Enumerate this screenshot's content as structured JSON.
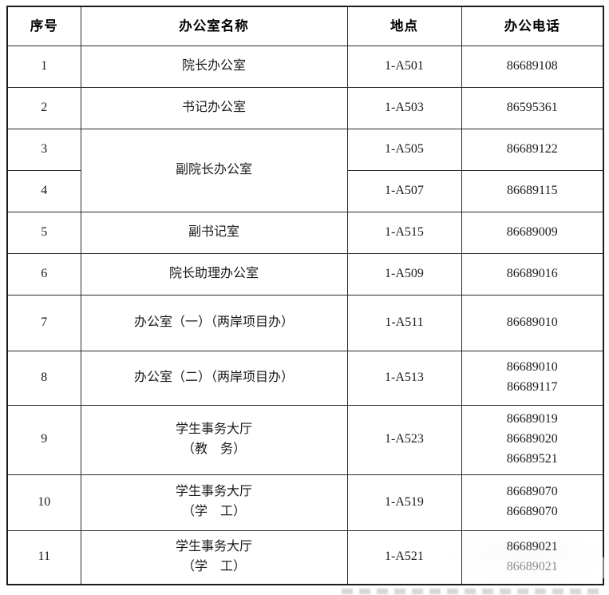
{
  "table": {
    "headers": [
      "序号",
      "办公室名称",
      "地点",
      "办公电话"
    ],
    "rows": [
      {
        "no": "1",
        "name": "院长办公室",
        "location": "1-A501",
        "phone": "86689108"
      },
      {
        "no": "2",
        "name": "书记办公室",
        "location": "1-A503",
        "phone": "86595361"
      },
      {
        "no": "3",
        "name": "副院长办公室",
        "location": "1-A505",
        "phone": "86689122"
      },
      {
        "no": "4",
        "location": "1-A507",
        "phone": "86689115"
      },
      {
        "no": "5",
        "name": "副书记室",
        "location": "1-A515",
        "phone": "86689009"
      },
      {
        "no": "6",
        "name": "院长助理办公室",
        "location": "1-A509",
        "phone": "86689016"
      },
      {
        "no": "7",
        "name": "办公室（一）（两岸项目办）",
        "location": "1-A511",
        "phone": "86689010"
      },
      {
        "no": "8",
        "name": "办公室（二）（两岸项目办）",
        "location": "1-A513",
        "phone": "86689010\n86689117"
      },
      {
        "no": "9",
        "name": "学生事务大厅\n（教　务）",
        "location": "1-A523",
        "phone": "86689019\n86689020\n86689521"
      },
      {
        "no": "10",
        "name": "学生事务大厅\n（学　工）",
        "location": "1-A519",
        "phone": "86689070\n86689070"
      },
      {
        "no": "11",
        "name": "学生事务大厅\n（学　工）",
        "location": "1-A521",
        "phone": "86689021\n86689021"
      }
    ]
  }
}
